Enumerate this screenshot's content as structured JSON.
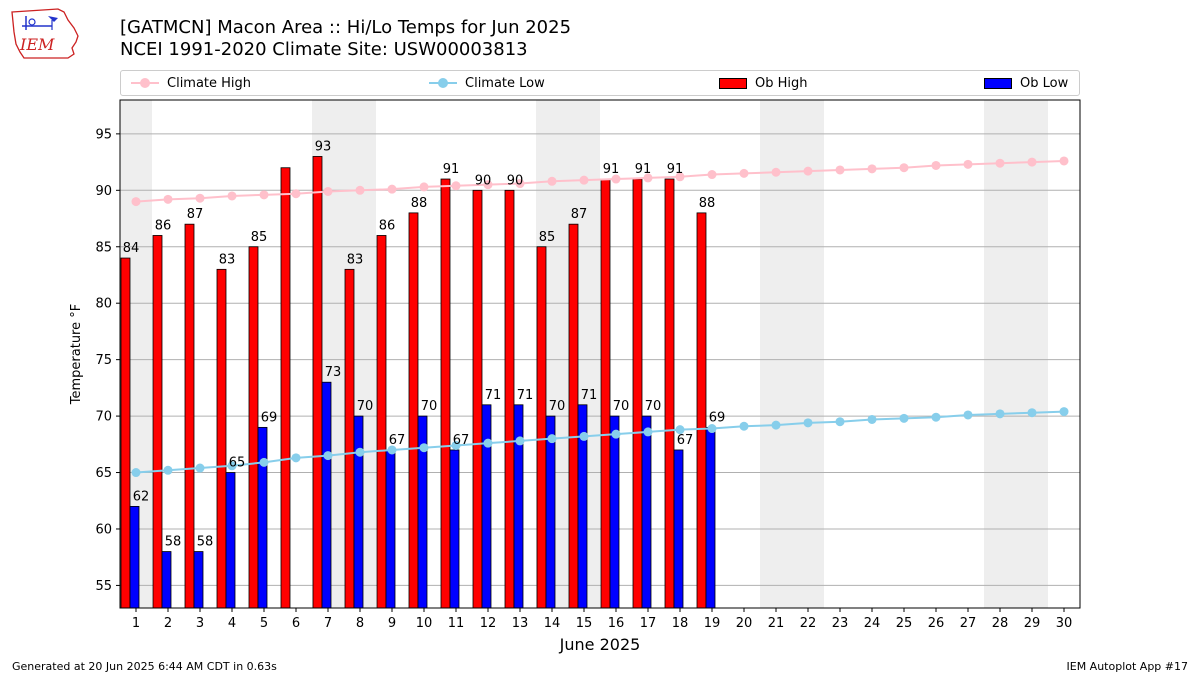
{
  "header": {
    "title_line1": "[GATMCN] Macon Area :: Hi/Lo Temps for Jun 2025",
    "title_line2": "NCEI 1991-2020 Climate Site: USW00003813",
    "logo_text": "IEM"
  },
  "legend": {
    "items": [
      {
        "label": "Climate High",
        "kind": "line",
        "color": "#ffc0cb"
      },
      {
        "label": "Climate Low",
        "kind": "line",
        "color": "#87ceeb"
      },
      {
        "label": "Ob High",
        "kind": "bar",
        "color": "#ff0000"
      },
      {
        "label": "Ob Low",
        "kind": "bar",
        "color": "#0000ff"
      }
    ]
  },
  "chart_data": {
    "type": "bar",
    "xlabel": "June 2025",
    "ylabel": "Temperature °F",
    "ylim": [
      53,
      98
    ],
    "yticks": [
      55,
      60,
      65,
      70,
      75,
      80,
      85,
      90,
      95
    ],
    "grid": true,
    "legend_position": "top",
    "days": [
      1,
      2,
      3,
      4,
      5,
      6,
      7,
      8,
      9,
      10,
      11,
      12,
      13,
      14,
      15,
      16,
      17,
      18,
      19,
      20,
      21,
      22,
      23,
      24,
      25,
      26,
      27,
      28,
      29,
      30
    ],
    "weekend_shading_days": [
      1,
      7,
      8,
      14,
      15,
      21,
      22,
      28,
      29
    ],
    "ob_high": [
      84,
      86,
      87,
      83,
      85,
      92,
      93,
      83,
      86,
      88,
      91,
      90,
      90,
      85,
      87,
      91,
      91,
      91,
      88
    ],
    "ob_high_labels": [
      "84",
      "86",
      "87",
      "83",
      "85",
      "",
      "93",
      "83",
      "86",
      "88",
      "91",
      "90",
      "90",
      "85",
      "87",
      "91",
      "91",
      "91",
      "88"
    ],
    "ob_low": [
      62,
      58,
      58,
      65,
      69,
      null,
      73,
      70,
      67,
      70,
      67,
      71,
      71,
      70,
      71,
      70,
      70,
      67,
      69
    ],
    "ob_low_labels": [
      "62",
      "58",
      "58",
      "65",
      "69",
      "",
      "73",
      "70",
      "67",
      "70",
      "67",
      "71",
      "71",
      "70",
      "71",
      "70",
      "70",
      "67",
      "69"
    ],
    "climate_high": [
      89.0,
      89.2,
      89.3,
      89.5,
      89.6,
      89.7,
      89.9,
      90.0,
      90.1,
      90.3,
      90.4,
      90.5,
      90.6,
      90.8,
      90.9,
      91.0,
      91.1,
      91.2,
      91.4,
      91.5,
      91.6,
      91.7,
      91.8,
      91.9,
      92.0,
      92.2,
      92.3,
      92.4,
      92.5,
      92.6
    ],
    "climate_low": [
      65.0,
      65.2,
      65.4,
      65.6,
      65.9,
      66.3,
      66.5,
      66.8,
      67.0,
      67.2,
      67.4,
      67.6,
      67.8,
      68.0,
      68.2,
      68.4,
      68.6,
      68.8,
      68.9,
      69.1,
      69.2,
      69.4,
      69.5,
      69.7,
      69.8,
      69.9,
      70.1,
      70.2,
      70.3,
      70.4
    ],
    "colors": {
      "ob_high": "#ff0000",
      "ob_low": "#0000ff",
      "climate_high": "#ffc0cb",
      "climate_low": "#87ceeb",
      "weekend_band": "#eeeeee",
      "grid": "#b0b0b0"
    }
  },
  "footer": {
    "left": "Generated at 20 Jun 2025 6:44 AM CDT in 0.63s",
    "right": "IEM Autoplot App #17"
  }
}
